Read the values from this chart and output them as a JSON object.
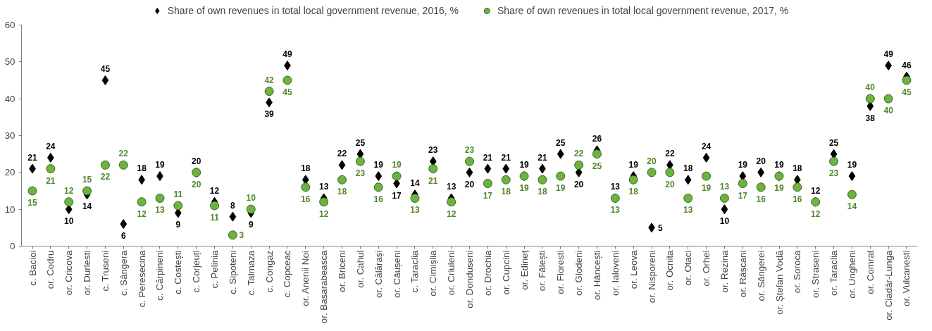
{
  "chart_data": {
    "type": "scatter",
    "categories": [
      "c. Bacioi",
      "or. Codru",
      "or. Cricova",
      "or. Durlesti",
      "c. Truseni",
      "c. Sângera",
      "c. Peresecina",
      "c. Cărpineni",
      "c. Costești",
      "c. Corjeuți",
      "c. Pelinia",
      "c. Sipoteni",
      "c. Talmaza",
      "c. Congaz",
      "c. Copceac",
      "or. Anenii Noi",
      "or. Basarabeasca",
      "or. Briceni",
      "or. Cahul",
      "or. Călărași",
      "or. Căușeni",
      "c. Taraclia",
      "or. Cimișlia",
      "or. Criuleni",
      "or. Donduseni",
      "or. Drochia",
      "or. Cupcini",
      "or. Edineț",
      "or. Fălești",
      "or. Floresti",
      "or. Glodeni",
      "or. Hâncești",
      "or. Ialoveni",
      "or. Leova",
      "or. Nisporeni",
      "or. Ocnita",
      "or. Otaci",
      "or. Orhei",
      "or. Rezina",
      "or. Rășcani",
      "or. Sângerei",
      "or. Ștefan Vodă",
      "or. Soroca",
      "or. Straseni",
      "or. Taraclia",
      "or. Ungheni",
      "or. Comrat",
      "or. Ciadâr-Lunga",
      "or. Vulcanesti"
    ],
    "series": [
      {
        "name": "Share of own revenues in total local government revenue, 2016, %",
        "color": "#000000",
        "marker": "diamond",
        "values": [
          21,
          24,
          10,
          14,
          45,
          6,
          18,
          19,
          9,
          20,
          12,
          8,
          9,
          39,
          49,
          18,
          13,
          22,
          25,
          19,
          17,
          14,
          23,
          13,
          20,
          21,
          21,
          19,
          21,
          25,
          20,
          26,
          13,
          19,
          5,
          22,
          18,
          24,
          10,
          19,
          20,
          19,
          18,
          12,
          25,
          19,
          38,
          49,
          46
        ]
      },
      {
        "name": "Share of own revenues in total local government revenue, 2017, %",
        "color": "#6cb33f",
        "marker": "circle",
        "values": [
          15,
          21,
          12,
          15,
          22,
          22,
          12,
          13,
          11,
          20,
          11,
          3,
          10,
          42,
          45,
          16,
          12,
          18,
          23,
          16,
          19,
          13,
          21,
          12,
          23,
          17,
          18,
          19,
          18,
          19,
          22,
          25,
          13,
          18,
          20,
          20,
          13,
          19,
          13,
          17,
          16,
          19,
          16,
          12,
          23,
          14,
          40,
          40,
          45
        ]
      }
    ],
    "ylim": [
      0,
      60
    ],
    "yticks": [
      0,
      10,
      20,
      30,
      40,
      50,
      60
    ],
    "grid": false,
    "legend": "top",
    "data_labels": true
  }
}
